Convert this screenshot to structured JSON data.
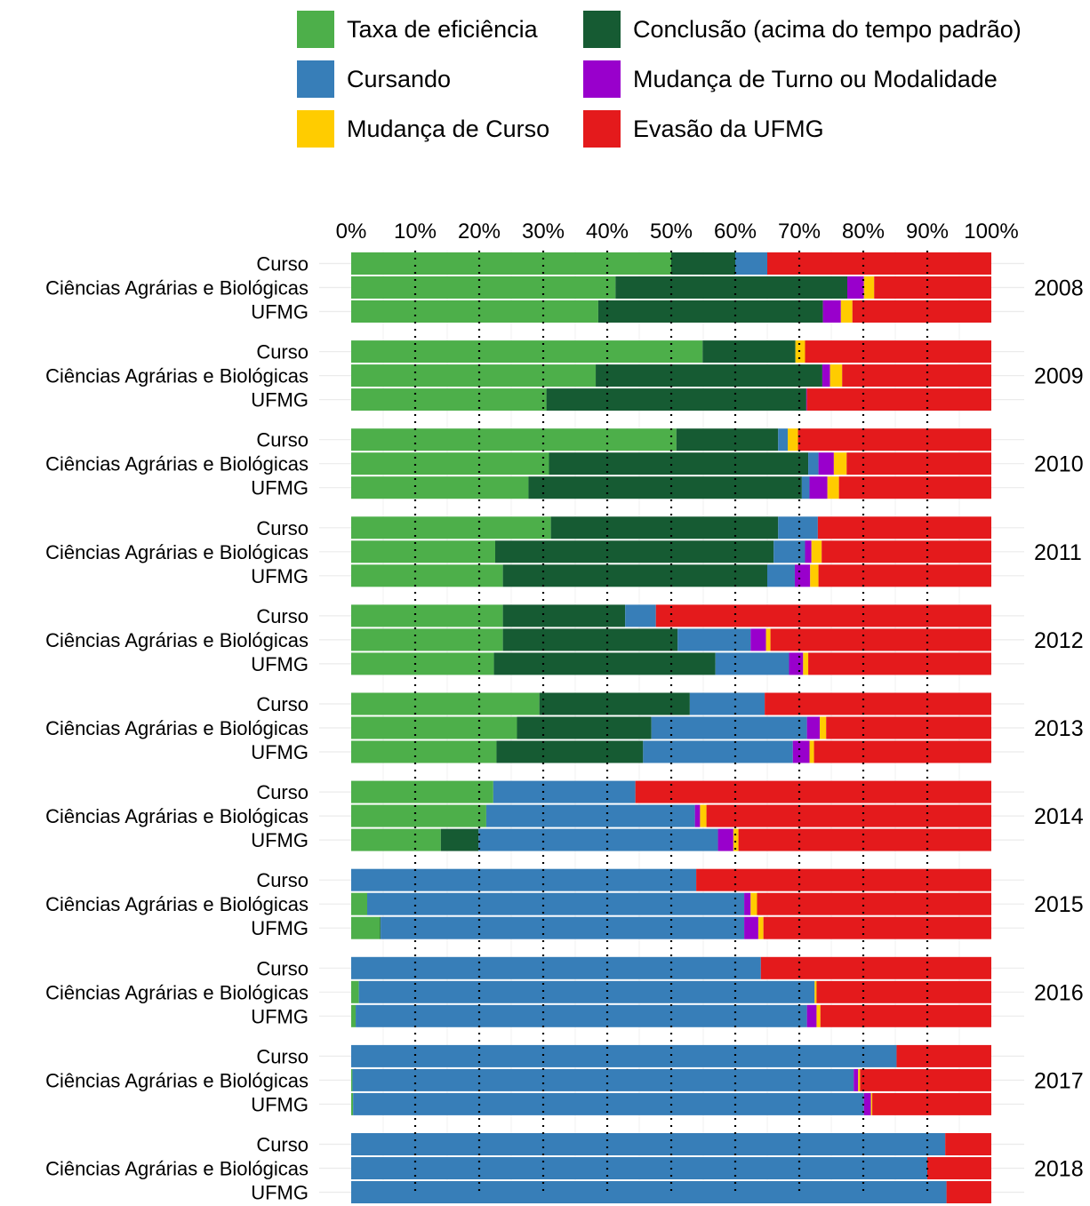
{
  "chart_data": {
    "type": "bar",
    "orientation": "horizontal",
    "stacked": true,
    "title": "",
    "xlabel": "",
    "ylabel": "",
    "xlim": [
      0,
      100
    ],
    "x_ticks": [
      "0%",
      "10%",
      "20%",
      "30%",
      "40%",
      "50%",
      "60%",
      "70%",
      "80%",
      "90%",
      "100%"
    ],
    "grid": "vertical dotted lines at 10% steps",
    "legend_position": "top",
    "series": [
      {
        "name": "Taxa de eficiência",
        "color": "#4DAF4A"
      },
      {
        "name": "Conclusão (acima do tempo padrão)",
        "color": "#165B33"
      },
      {
        "name": "Cursando",
        "color": "#377EB8"
      },
      {
        "name": "Mudança de Turno ou Modalidade",
        "color": "#9900CC"
      },
      {
        "name": "Mudança de Curso",
        "color": "#FFCC00"
      },
      {
        "name": "Evasão da UFMG",
        "color": "#E41A1C"
      }
    ],
    "legend_layout": [
      {
        "series": 0,
        "col": 0,
        "row": 0
      },
      {
        "series": 2,
        "col": 0,
        "row": 1
      },
      {
        "series": 4,
        "col": 0,
        "row": 2
      },
      {
        "series": 1,
        "col": 1,
        "row": 0
      },
      {
        "series": 3,
        "col": 1,
        "row": 1
      },
      {
        "series": 5,
        "col": 1,
        "row": 2
      }
    ],
    "row_labels": [
      "Curso",
      "Ciências Agrárias e Biológicas",
      "UFMG"
    ],
    "series_order": [
      "Taxa de eficiência",
      "Conclusão (acima do tempo padrão)",
      "Cursando",
      "Mudança de Turno ou Modalidade",
      "Mudança de Curso",
      "Evasão da UFMG"
    ],
    "groups": [
      {
        "year": "2008",
        "rows": [
          [
            50,
            10,
            5,
            0,
            0,
            35
          ],
          [
            41.3,
            36.2,
            0,
            2.6,
            1.6,
            18.3
          ],
          [
            38.6,
            35.1,
            0,
            2.8,
            1.8,
            21.7
          ]
        ]
      },
      {
        "year": "2009",
        "rows": [
          [
            54.9,
            14.5,
            0,
            0,
            1.5,
            29.1
          ],
          [
            38.2,
            35.4,
            0,
            1.2,
            1.9,
            23.3
          ],
          [
            30.5,
            40.6,
            0,
            0.1,
            0,
            28.8
          ]
        ]
      },
      {
        "year": "2010",
        "rows": [
          [
            50.8,
            15.9,
            1.5,
            0,
            1.6,
            30.2
          ],
          [
            30.9,
            40.5,
            1.6,
            2.4,
            2,
            22.6
          ],
          [
            27.7,
            42.7,
            1.2,
            2.8,
            1.8,
            23.8
          ]
        ]
      },
      {
        "year": "2011",
        "rows": [
          [
            31.2,
            35.5,
            6.2,
            0,
            0,
            27.1
          ],
          [
            22.5,
            43.5,
            4.9,
            1,
            1.6,
            26.5
          ],
          [
            23.7,
            41.3,
            4.3,
            2.4,
            1.3,
            27
          ]
        ]
      },
      {
        "year": "2012",
        "rows": [
          [
            23.7,
            19.1,
            4.8,
            0,
            0,
            52.4
          ],
          [
            23.7,
            27.3,
            11.4,
            2.4,
            0.7,
            34.5
          ],
          [
            22.3,
            34.6,
            11.5,
            2.2,
            0.8,
            28.6
          ]
        ]
      },
      {
        "year": "2013",
        "rows": [
          [
            29.4,
            23.5,
            11.7,
            0,
            0,
            35.4
          ],
          [
            25.9,
            21,
            24.3,
            2,
            1,
            25.8
          ],
          [
            22.7,
            22.9,
            23.4,
            2.6,
            0.7,
            27.7
          ]
        ]
      },
      {
        "year": "2014",
        "rows": [
          [
            22.2,
            0,
            22.2,
            0,
            0,
            55.6
          ],
          [
            21.1,
            0,
            32.6,
            0.8,
            1,
            44.5
          ],
          [
            14,
            5.9,
            37.4,
            2.4,
            0.8,
            39.5
          ]
        ]
      },
      {
        "year": "2015",
        "rows": [
          [
            0,
            0,
            53.9,
            0,
            0,
            46.1
          ],
          [
            2.5,
            0,
            58.9,
            1,
            1,
            36.6
          ],
          [
            4.5,
            0.1,
            56.8,
            2.2,
            0.8,
            35.6
          ]
        ]
      },
      {
        "year": "2016",
        "rows": [
          [
            0,
            0,
            64,
            0,
            0,
            36
          ],
          [
            1.2,
            0,
            71.2,
            0,
            0.3,
            27.3
          ],
          [
            0.7,
            0,
            70.5,
            1.5,
            0.6,
            26.7
          ]
        ]
      },
      {
        "year": "2017",
        "rows": [
          [
            0,
            0,
            85.2,
            0,
            0,
            14.8
          ],
          [
            0.2,
            0,
            78.3,
            0.7,
            0.3,
            20.5
          ],
          [
            0.3,
            0,
            79.8,
            1.1,
            0.2,
            18.6
          ]
        ]
      },
      {
        "year": "2018",
        "rows": [
          [
            0,
            0,
            92.8,
            0,
            0,
            7.2
          ],
          [
            0,
            0,
            90,
            0,
            0,
            10
          ],
          [
            0,
            0,
            93,
            0,
            0,
            7
          ]
        ]
      }
    ]
  }
}
